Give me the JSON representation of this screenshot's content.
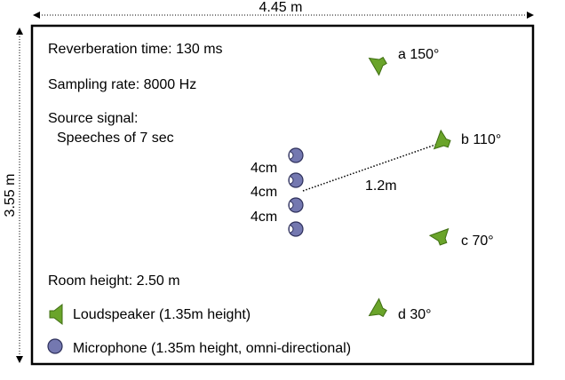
{
  "dimensions": {
    "width_label": "4.45 m",
    "height_label": "3.55 m"
  },
  "room_info": {
    "reverberation": "Reverberation time: 130 ms",
    "sampling": "Sampling rate: 8000 Hz",
    "source_title": "Source signal:",
    "source_desc": "Speeches of 7 sec",
    "room_height": "Room height: 2.50 m"
  },
  "legend": {
    "loudspeaker_label": "Loudspeaker (1.35m height)",
    "microphone_label": "Microphone (1.35m height, omni-directional)"
  },
  "mic_array": {
    "spacing_labels": [
      "4cm",
      "4cm",
      "4cm"
    ],
    "distance_label": "1.2m"
  },
  "loudspeakers": [
    {
      "id": "a",
      "label": "a 150°"
    },
    {
      "id": "b",
      "label": "b 110°"
    },
    {
      "id": "c",
      "label": "c 70°"
    },
    {
      "id": "d",
      "label": "d 30°"
    }
  ],
  "colors": {
    "speaker_fill": "#6aa42a",
    "speaker_stroke": "#3f6e12",
    "mic_fill": "#7478b0",
    "mic_stroke": "#2d2f5a",
    "room_border": "#000000"
  }
}
